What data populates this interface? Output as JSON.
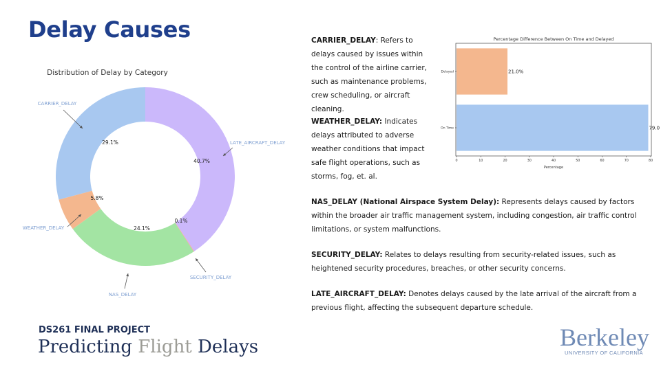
{
  "slide": {
    "title": "Delay Causes"
  },
  "chart_data": [
    {
      "type": "pie",
      "title": "Distribution of Delay by Category",
      "donut": true,
      "slices": [
        {
          "label": "CARRIER_DELAY",
          "value": 29.1,
          "pct_label": "29.1%",
          "color": "#a8c8f0"
        },
        {
          "label": "WEATHER_DELAY",
          "value": 5.8,
          "pct_label": "5.8%",
          "color": "#f4b78e"
        },
        {
          "label": "NAS_DELAY",
          "value": 24.1,
          "pct_label": "24.1%",
          "color": "#a3e4a3"
        },
        {
          "label": "SECURITY_DELAY",
          "value": 0.1,
          "pct_label": "0.1%",
          "color": "#ff9a9a"
        },
        {
          "label": "LATE_AIRCRAFT_DELAY",
          "value": 40.7,
          "pct_label": "40.7%",
          "color": "#cbb8fb"
        }
      ]
    },
    {
      "type": "bar",
      "orientation": "horizontal",
      "title": "Percentage Difference Between On Time and Delayed",
      "xlabel": "Percentage",
      "ylabel": "",
      "xlim": [
        0,
        80
      ],
      "xticks": [
        0,
        10,
        20,
        30,
        40,
        50,
        60,
        70,
        80
      ],
      "categories": [
        "Delayed",
        "On Time"
      ],
      "values": [
        21.0,
        79.0
      ],
      "value_labels": [
        "21.0%",
        "79.0%"
      ],
      "colors": [
        "#f4b78e",
        "#a8c8f0"
      ]
    }
  ],
  "definitions": {
    "carrier": {
      "term": "CARRIER_DELAY",
      "text": ": Refers to delays caused by issues within the control of the airline carrier, such as maintenance problems, crew scheduling, or aircraft cleaning."
    },
    "weather": {
      "term": "WEATHER_DELAY:",
      "text": " Indicates delays attributed to adverse weather conditions that impact safe flight operations, such as storms, fog, et. al."
    },
    "nas": {
      "term": "NAS_DELAY (National Airspace System Delay):",
      "text": " Represents delays caused by factors within the broader air traffic management system, including congestion, air traffic control limitations, or system malfunctions."
    },
    "security": {
      "term": "SECURITY_DELAY:",
      "text": " Relates to delays resulting from security-related issues, such as heightened security procedures, breaches, or other security concerns."
    },
    "late": {
      "term": "LATE_AIRCRAFT_DELAY:",
      "text": " Denotes delays caused by the late arrival of the aircraft from a previous flight, affecting the subsequent departure schedule."
    }
  },
  "footer": {
    "project": "DS261 FINAL PROJECT",
    "title_part1": "Predicting ",
    "title_part2": "Flight",
    "title_part3": " Delays"
  },
  "logo": {
    "name": "Berkeley",
    "subtitle": "UNIVERSITY OF CALIFORNIA",
    "color": "#6f8ab5"
  }
}
